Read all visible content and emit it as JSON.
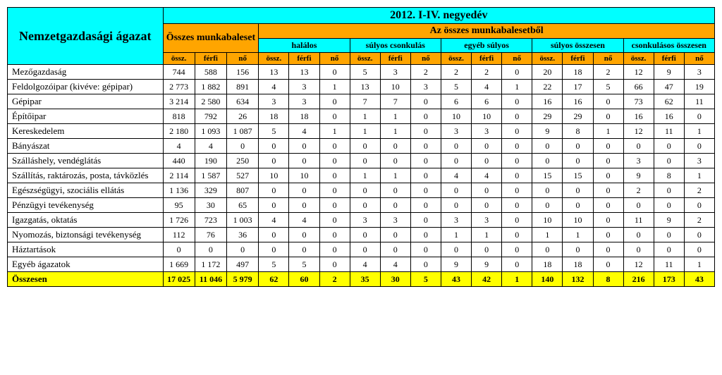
{
  "colors": {
    "header_primary": "#00ffff",
    "header_secondary": "#ffa500",
    "row_total": "#ffff00",
    "border": "#000000",
    "background": "#ffffff"
  },
  "font_family": "Times New Roman",
  "header": {
    "sector": "Nemzetgazdasági ágazat",
    "period": "2012. I-IV. negyedév",
    "all_accidents": "Összes munkabaleset",
    "of_all_accidents": "Az összes munkabalesetből",
    "groups": [
      "halálos",
      "súlyos csonkulás",
      "egyéb súlyos",
      "súlyos összesen",
      "csonkulásos összesen"
    ],
    "subcols": [
      "össz.",
      "férfi",
      "nő"
    ]
  },
  "rows": [
    {
      "sector": "Mezőgazdaság",
      "v": [
        "744",
        "588",
        "156",
        "13",
        "13",
        "0",
        "5",
        "3",
        "2",
        "2",
        "2",
        "0",
        "20",
        "18",
        "2",
        "12",
        "9",
        "3"
      ]
    },
    {
      "sector": "Feldolgozóipar (kivéve: gépipar)",
      "v": [
        "2 773",
        "1 882",
        "891",
        "4",
        "3",
        "1",
        "13",
        "10",
        "3",
        "5",
        "4",
        "1",
        "22",
        "17",
        "5",
        "66",
        "47",
        "19"
      ]
    },
    {
      "sector": "Gépipar",
      "v": [
        "3 214",
        "2 580",
        "634",
        "3",
        "3",
        "0",
        "7",
        "7",
        "0",
        "6",
        "6",
        "0",
        "16",
        "16",
        "0",
        "73",
        "62",
        "11"
      ]
    },
    {
      "sector": "Építőipar",
      "v": [
        "818",
        "792",
        "26",
        "18",
        "18",
        "0",
        "1",
        "1",
        "0",
        "10",
        "10",
        "0",
        "29",
        "29",
        "0",
        "16",
        "16",
        "0"
      ]
    },
    {
      "sector": "Kereskedelem",
      "v": [
        "2 180",
        "1 093",
        "1 087",
        "5",
        "4",
        "1",
        "1",
        "1",
        "0",
        "3",
        "3",
        "0",
        "9",
        "8",
        "1",
        "12",
        "11",
        "1"
      ]
    },
    {
      "sector": "Bányászat",
      "v": [
        "4",
        "4",
        "0",
        "0",
        "0",
        "0",
        "0",
        "0",
        "0",
        "0",
        "0",
        "0",
        "0",
        "0",
        "0",
        "0",
        "0",
        "0"
      ]
    },
    {
      "sector": "Szálláshely, vendéglátás",
      "v": [
        "440",
        "190",
        "250",
        "0",
        "0",
        "0",
        "0",
        "0",
        "0",
        "0",
        "0",
        "0",
        "0",
        "0",
        "0",
        "3",
        "0",
        "3"
      ]
    },
    {
      "sector": "Szállítás, raktározás, posta, távközlés",
      "v": [
        "2 114",
        "1 587",
        "527",
        "10",
        "10",
        "0",
        "1",
        "1",
        "0",
        "4",
        "4",
        "0",
        "15",
        "15",
        "0",
        "9",
        "8",
        "1"
      ]
    },
    {
      "sector": "Egészségügyi, szociális ellátás",
      "v": [
        "1 136",
        "329",
        "807",
        "0",
        "0",
        "0",
        "0",
        "0",
        "0",
        "0",
        "0",
        "0",
        "0",
        "0",
        "0",
        "2",
        "0",
        "2"
      ]
    },
    {
      "sector": "Pénzügyi tevékenység",
      "v": [
        "95",
        "30",
        "65",
        "0",
        "0",
        "0",
        "0",
        "0",
        "0",
        "0",
        "0",
        "0",
        "0",
        "0",
        "0",
        "0",
        "0",
        "0"
      ]
    },
    {
      "sector": "Igazgatás, oktatás",
      "v": [
        "1 726",
        "723",
        "1 003",
        "4",
        "4",
        "0",
        "3",
        "3",
        "0",
        "3",
        "3",
        "0",
        "10",
        "10",
        "0",
        "11",
        "9",
        "2"
      ]
    },
    {
      "sector": "Nyomozás, biztonsági tevékenység",
      "v": [
        "112",
        "76",
        "36",
        "0",
        "0",
        "0",
        "0",
        "0",
        "0",
        "1",
        "1",
        "0",
        "1",
        "1",
        "0",
        "0",
        "0",
        "0"
      ]
    },
    {
      "sector": "Háztartások",
      "v": [
        "0",
        "0",
        "0",
        "0",
        "0",
        "0",
        "0",
        "0",
        "0",
        "0",
        "0",
        "0",
        "0",
        "0",
        "0",
        "0",
        "0",
        "0"
      ]
    },
    {
      "sector": "Egyéb ágazatok",
      "v": [
        "1 669",
        "1 172",
        "497",
        "5",
        "5",
        "0",
        "4",
        "4",
        "0",
        "9",
        "9",
        "0",
        "18",
        "18",
        "0",
        "12",
        "11",
        "1"
      ]
    }
  ],
  "total": {
    "sector": "Összesen",
    "v": [
      "17 025",
      "11 046",
      "5 979",
      "62",
      "60",
      "2",
      "35",
      "30",
      "5",
      "43",
      "42",
      "1",
      "140",
      "132",
      "8",
      "216",
      "173",
      "43"
    ]
  }
}
